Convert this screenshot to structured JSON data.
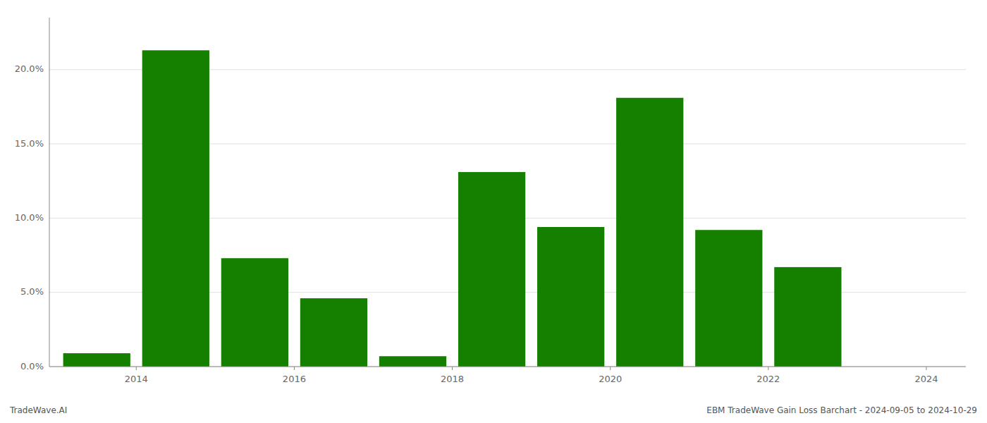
{
  "chart_data": {
    "type": "bar",
    "x": [
      2014,
      2015,
      2016,
      2017,
      2018,
      2019,
      2020,
      2021,
      2022,
      2023,
      2024
    ],
    "values": [
      0.009,
      0.213,
      0.073,
      0.046,
      0.007,
      0.131,
      0.094,
      0.181,
      0.092,
      0.067,
      0.0
    ],
    "color": "#158000",
    "xlim": [
      2013.4,
      2025.0
    ],
    "xticks": [
      {
        "value": 2014.5,
        "label": "2014"
      },
      {
        "value": 2016.5,
        "label": "2016"
      },
      {
        "value": 2018.5,
        "label": "2018"
      },
      {
        "value": 2020.5,
        "label": "2020"
      },
      {
        "value": 2022.5,
        "label": "2022"
      },
      {
        "value": 2024.5,
        "label": "2024"
      }
    ],
    "ylim": [
      0,
      0.235
    ],
    "yticks": [
      {
        "value": 0.0,
        "label": "0.0%"
      },
      {
        "value": 0.05,
        "label": "5.0%"
      },
      {
        "value": 0.1,
        "label": "10.0%"
      },
      {
        "value": 0.15,
        "label": "15.0%"
      },
      {
        "value": 0.2,
        "label": "20.0%"
      }
    ],
    "grid": true,
    "annotations": [
      "TradeWave.AI",
      "EBM TradeWave Gain Loss Barchart - 2024-09-05 to 2024-10-29"
    ]
  }
}
